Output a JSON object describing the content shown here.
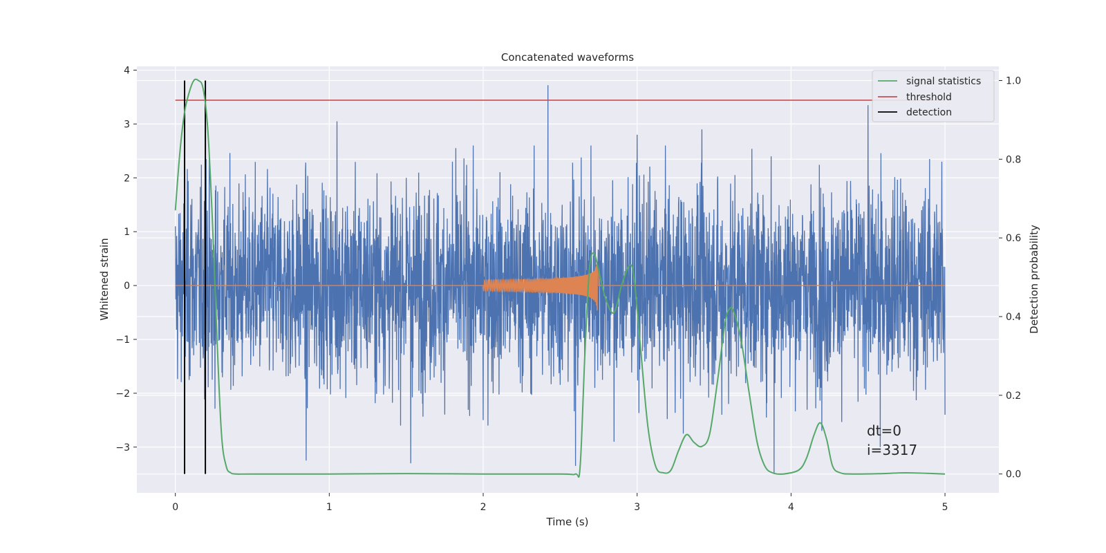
{
  "chart_data": {
    "type": "line",
    "title": "Concatenated waveforms",
    "xlabel": "Time (s)",
    "ylabel": "Whitened strain",
    "y2label": "Detection probability",
    "xlim": [
      -0.25,
      5.35
    ],
    "ylim": [
      -3.85,
      4.07
    ],
    "y2lim": [
      -0.048,
      1.036
    ],
    "x_ticks": [
      "0",
      "1",
      "2",
      "3",
      "4",
      "5"
    ],
    "y_ticks": [
      "4",
      "3",
      "2",
      "1",
      "0",
      "−1",
      "−2",
      "−3"
    ],
    "y2_ticks": [
      "1.0",
      "0.8",
      "0.6",
      "0.4",
      "0.2",
      "0.0"
    ],
    "grid": true,
    "legend_position": "top-right",
    "colors": {
      "noise": "#4c72b0",
      "injection": "#dd8452",
      "statistic": "#55a868",
      "threshold": "#c44e52",
      "detection": "#000000",
      "background": "#eaeaf2"
    },
    "series": [
      {
        "name": "signal statistics",
        "axis": "right",
        "x": [
          0.0,
          0.03,
          0.06,
          0.09,
          0.12,
          0.15,
          0.18,
          0.21,
          0.24,
          0.27,
          0.3,
          0.33,
          0.36,
          0.4,
          0.5,
          1.0,
          1.5,
          2.0,
          2.5,
          2.6,
          2.63,
          2.66,
          2.69,
          2.72,
          2.76,
          2.8,
          2.85,
          2.9,
          2.95,
          2.98,
          3.02,
          3.07,
          3.12,
          3.17,
          3.22,
          3.27,
          3.32,
          3.37,
          3.42,
          3.47,
          3.52,
          3.57,
          3.6,
          3.63,
          3.68,
          3.73,
          3.78,
          3.83,
          3.88,
          3.95,
          4.05,
          4.1,
          4.15,
          4.19,
          4.23,
          4.27,
          4.32,
          4.4,
          4.6,
          4.75,
          5.0
        ],
        "values": [
          0.67,
          0.82,
          0.92,
          0.97,
          1.0,
          1.0,
          0.98,
          0.88,
          0.65,
          0.35,
          0.1,
          0.02,
          0.003,
          0.0,
          0.0,
          0.0,
          0.001,
          0.0,
          0.0,
          0.0,
          0.02,
          0.3,
          0.52,
          0.56,
          0.5,
          0.44,
          0.41,
          0.48,
          0.53,
          0.5,
          0.33,
          0.12,
          0.02,
          0.003,
          0.01,
          0.06,
          0.1,
          0.08,
          0.07,
          0.1,
          0.23,
          0.38,
          0.42,
          0.41,
          0.33,
          0.2,
          0.08,
          0.02,
          0.003,
          0.0,
          0.01,
          0.04,
          0.1,
          0.13,
          0.09,
          0.02,
          0.003,
          0.0,
          0.001,
          0.003,
          0.0
        ]
      },
      {
        "name": "threshold",
        "axis": "right",
        "x": [
          0.0,
          5.0
        ],
        "values": [
          0.95,
          0.95
        ]
      },
      {
        "name": "detection",
        "axis": "right",
        "x_positions": [
          0.06,
          0.195
        ],
        "values": [
          0.0,
          1.0
        ]
      },
      {
        "axis": "left",
        "x": [
          0.0,
          0.06,
          0.1,
          0.2,
          0.24,
          0.26,
          0.85,
          1.05,
          1.5,
          1.53,
          1.8,
          2.0,
          2.42,
          2.6,
          2.7,
          2.85,
          3.0,
          3.3,
          3.42,
          3.55,
          3.87,
          3.89,
          4.2,
          4.5,
          4.58,
          4.9,
          4.98,
          5.0
        ],
        "values": [
          1.1,
          -1.6,
          1.5,
          2.35,
          -1.75,
          1.77,
          -3.25,
          3.05,
          2.0,
          -3.3,
          2.3,
          -2.5,
          3.72,
          -3.35,
          2.6,
          -2.9,
          2.8,
          -2.75,
          2.9,
          -2.4,
          2.4,
          -3.5,
          -2.7,
          3.35,
          -3.0,
          2.35,
          2.3,
          -2.4
        ],
        "noise_envelope": 1.05
      },
      {
        "axis": "left",
        "x_range": [
          2.0,
          2.75
        ],
        "amplitude_start": 0.1,
        "amplitude_peak": 0.5,
        "merger_time": 2.74
      }
    ],
    "annotations": [
      "dt=0",
      "i=3317"
    ]
  }
}
